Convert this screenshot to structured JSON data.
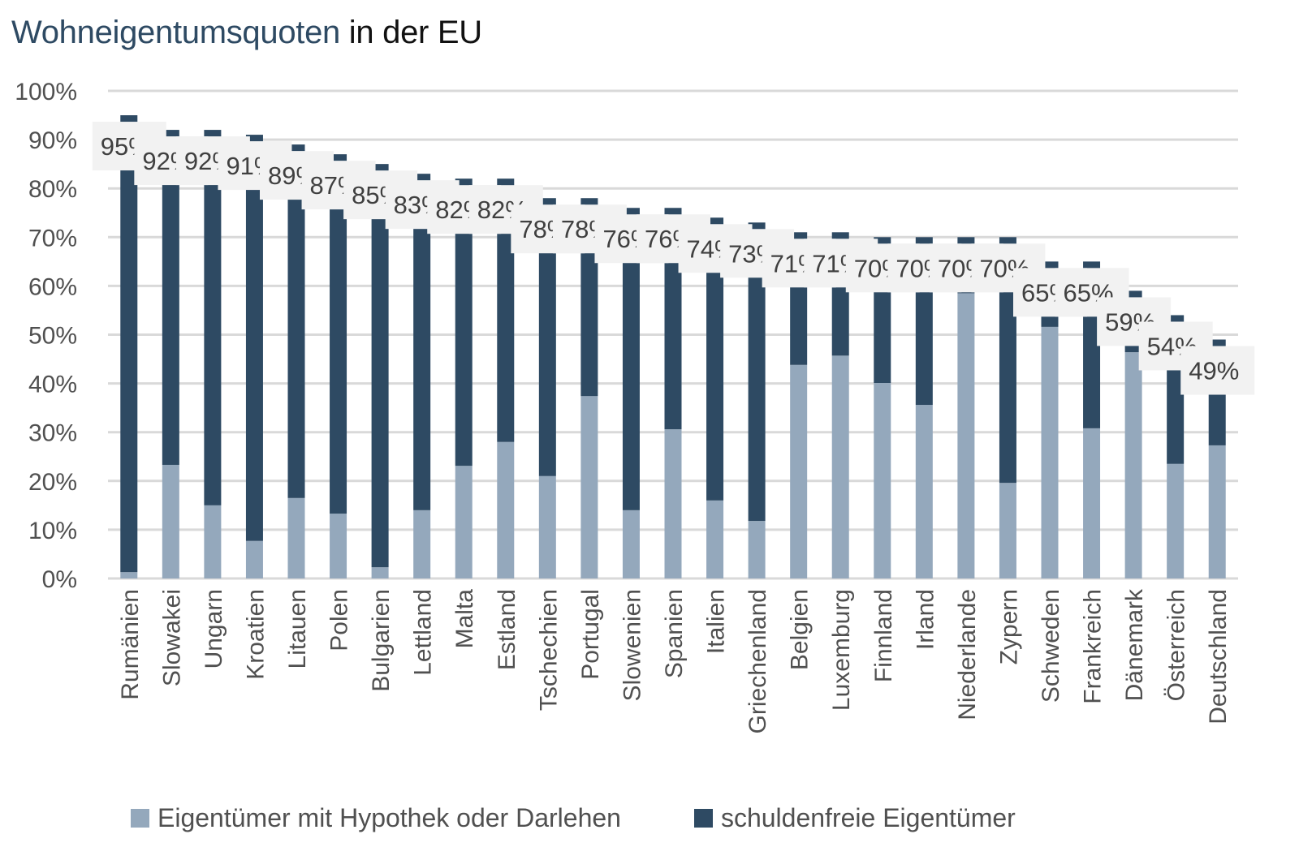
{
  "chart_data": {
    "type": "bar",
    "stacked": true,
    "title": "Wohneigentumsquoten in der EU",
    "title_parts": [
      {
        "text": "Wohneigentumsquoten",
        "color": "#2e4a63"
      },
      {
        "text": " in der EU",
        "color": "#111111"
      }
    ],
    "xlabel": "",
    "ylabel": "",
    "ylim": [
      0,
      100
    ],
    "yticks": [
      "0%",
      "10%",
      "20%",
      "30%",
      "40%",
      "50%",
      "60%",
      "70%",
      "80%",
      "90%",
      "100%"
    ],
    "grid": true,
    "legend_position": "bottom",
    "categories": [
      "Rumänien",
      "Slowakei",
      "Ungarn",
      "Kroatien",
      "Litauen",
      "Polen",
      "Bulgarien",
      "Lettland",
      "Malta",
      "Estland",
      "Tschechien",
      "Portugal",
      "Slowenien",
      "Spanien",
      "Italien",
      "Griechenland",
      "Belgien",
      "Luxemburg",
      "Finnland",
      "Irland",
      "Niederlande",
      "Zypern",
      "Schweden",
      "Frankreich",
      "Dänemark",
      "Österreich",
      "Deutschland"
    ],
    "series": [
      {
        "name": "Eigentümer mit Hypothek oder Darlehen",
        "color": "#94a8bc",
        "values": [
          1.3,
          23.3,
          15.0,
          7.7,
          16.5,
          13.3,
          2.3,
          14.0,
          23.1,
          28.0,
          21.0,
          37.4,
          14.0,
          30.6,
          16.0,
          11.8,
          43.8,
          45.7,
          40.1,
          35.6,
          58.5,
          19.6,
          51.6,
          30.8,
          46.4,
          23.5,
          27.3
        ]
      },
      {
        "name": "schuldenfreie Eigentümer",
        "color": "#2e4a63",
        "values": [
          93.7,
          68.7,
          77.0,
          83.3,
          72.5,
          73.7,
          82.7,
          69.0,
          58.9,
          54.0,
          57.0,
          40.6,
          62.0,
          45.4,
          58.0,
          61.2,
          27.2,
          25.3,
          29.9,
          34.4,
          11.5,
          50.4,
          13.4,
          34.2,
          12.6,
          30.5,
          21.7
        ]
      }
    ],
    "totals": [
      95,
      92,
      92,
      91,
      89,
      87,
      85,
      83,
      82,
      82,
      78,
      78,
      76,
      76,
      74,
      73,
      71,
      71,
      70,
      70,
      70,
      70,
      65,
      65,
      59,
      54,
      49
    ],
    "data_labels": [
      "95%",
      "92%",
      "92%",
      "91%",
      "89%",
      "87%",
      "85%",
      "83%",
      "82%",
      "82%",
      "78%",
      "78%",
      "76%",
      "76%",
      "74%",
      "73%",
      "71%",
      "71%",
      "70%",
      "70%",
      "70%",
      "70%",
      "65%",
      "65%",
      "59%",
      "54%",
      "49%"
    ]
  },
  "colors": {
    "grid": "#d9d9d9",
    "label_box": "#f2f2f2"
  }
}
